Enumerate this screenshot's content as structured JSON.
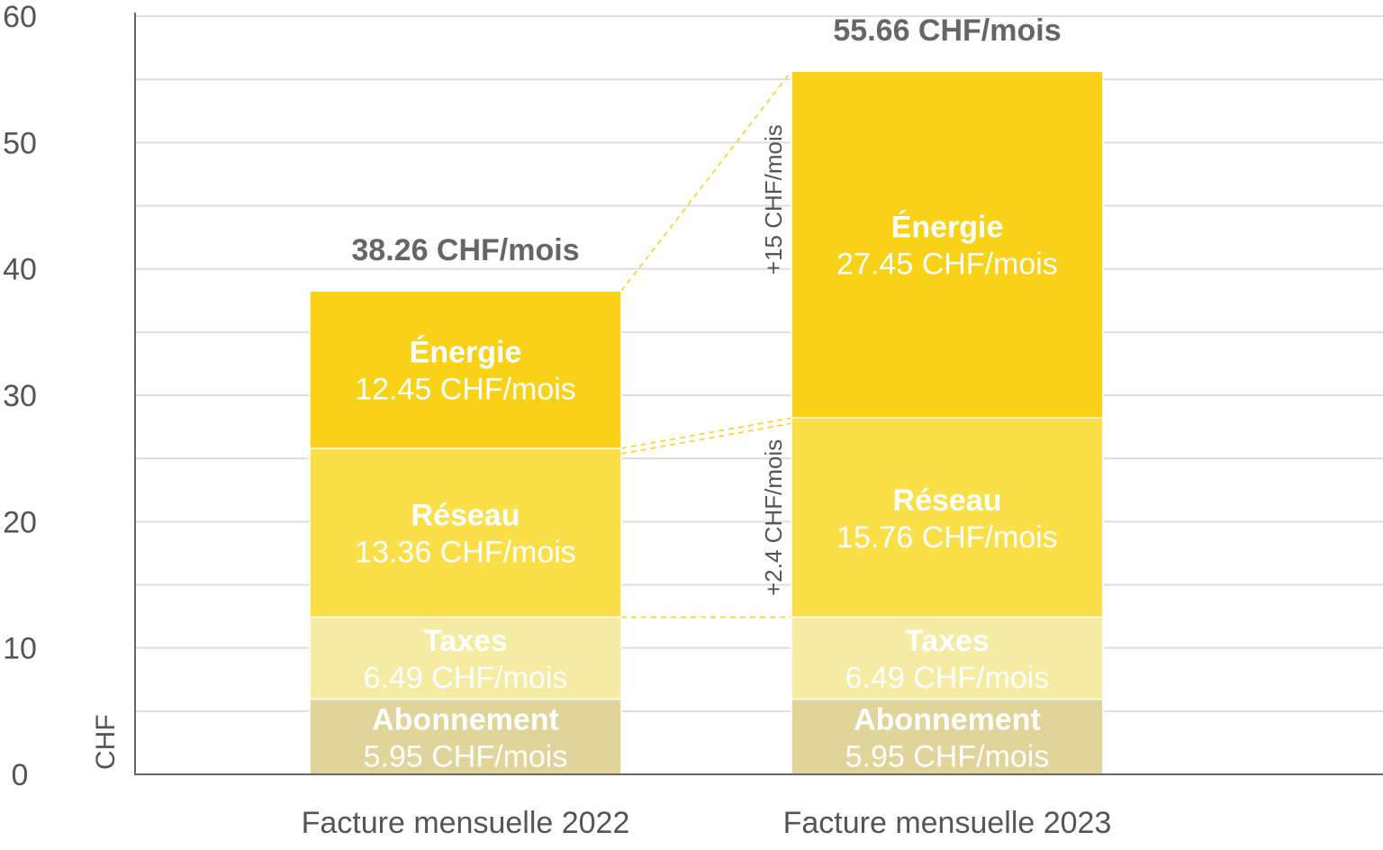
{
  "chart_data": {
    "type": "bar",
    "stacked": true,
    "categories": [
      "Facture mensuelle 2022",
      "Facture mensuelle 2023"
    ],
    "series": [
      {
        "name": "Abonnement",
        "values": [
          5.95,
          5.95
        ],
        "labels": [
          "5.95 CHF/mois",
          "5.95 CHF/mois"
        ],
        "color": "#E0D49A"
      },
      {
        "name": "Taxes",
        "values": [
          6.49,
          6.49
        ],
        "labels": [
          "6.49 CHF/mois",
          "6.49 CHF/mois"
        ],
        "color": "#F5EBA3"
      },
      {
        "name": "Réseau",
        "values": [
          13.36,
          15.76
        ],
        "labels": [
          "13.36 CHF/mois",
          "15.76 CHF/mois"
        ],
        "color": "#FADF48"
      },
      {
        "name": "Énergie",
        "values": [
          12.45,
          27.45
        ],
        "labels": [
          "12.45 CHF/mois",
          "27.45 CHF/mois"
        ],
        "color": "#F9D117"
      }
    ],
    "totals": [
      "38.26 CHF/mois",
      "55.66 CHF/mois"
    ],
    "annotations": [
      "+2.4 CHF/mois",
      "+15 CHF/mois"
    ],
    "ylabel": "CHF",
    "ylim": [
      0,
      60
    ],
    "yticks": [
      "0",
      "10",
      "20",
      "30",
      "40",
      "50",
      "60"
    ],
    "grid": true,
    "gridColor": "#DDDDDD",
    "connectorColor": "#F9D117"
  }
}
